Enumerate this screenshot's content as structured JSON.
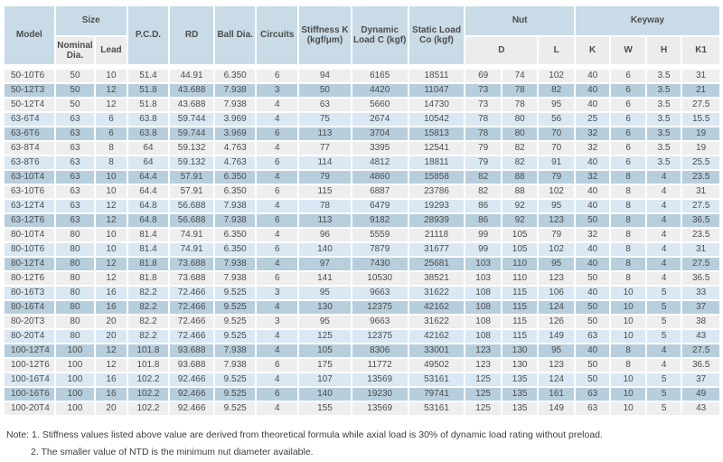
{
  "colors": {
    "header_blue": "#c8dbe6",
    "subheader_gray": "#ececec",
    "row_light": "#eeeeee",
    "row_light_blue": "#d9e8f3",
    "row_medium_blue": "#b7cedc",
    "text": "#4d4d4d"
  },
  "table": {
    "headers": {
      "model": "Model",
      "size": "Size",
      "nominal_dia": "Nominal Dia.",
      "lead": "Lead",
      "pcd": "P.C.D.",
      "rd": "RD",
      "ball_dia": "Ball Dia.",
      "circuits": "Circuits",
      "stiffness": "Stiffness K (kgf/μm)",
      "dynamic_load": "Dynamic Load C (kgf)",
      "static_load": "Static Load Co (kgf)",
      "nut": "Nut",
      "keyway": "Keyway",
      "d": "D",
      "l": "L",
      "k": "K",
      "w": "W",
      "h": "H",
      "k1": "K1"
    },
    "column_keys": [
      "model",
      "nominal-dia",
      "lead",
      "pcd",
      "rd",
      "ball-dia",
      "circuits",
      "stiffness",
      "dynamic-load",
      "static-load",
      "nut-d-min",
      "nut-d-max",
      "nut-l",
      "keyway-k",
      "keyway-w",
      "keyway-h",
      "keyway-k1"
    ],
    "rows": [
      {
        "tone": "light",
        "values": [
          "50-10T6",
          "50",
          "10",
          "51.4",
          "44.91",
          "6.350",
          "6",
          "94",
          "6165",
          "18511",
          "69",
          "74",
          "102",
          "40",
          "6",
          "3.5",
          "31"
        ]
      },
      {
        "tone": "medium",
        "values": [
          "50-12T3",
          "50",
          "12",
          "51.8",
          "43.688",
          "7.938",
          "3",
          "50",
          "4420",
          "11047",
          "73",
          "78",
          "82",
          "40",
          "6",
          "3.5",
          "21"
        ]
      },
      {
        "tone": "light",
        "values": [
          "50-12T4",
          "50",
          "12",
          "51.8",
          "43.688",
          "7.938",
          "4",
          "63",
          "5660",
          "14730",
          "73",
          "78",
          "95",
          "40",
          "6",
          "3.5",
          "27.5"
        ]
      },
      {
        "tone": "blue",
        "values": [
          "63-6T4",
          "63",
          "6",
          "63.8",
          "59.744",
          "3.969",
          "4",
          "75",
          "2674",
          "10542",
          "78",
          "80",
          "56",
          "25",
          "6",
          "3.5",
          "15.5"
        ]
      },
      {
        "tone": "medium",
        "values": [
          "63-6T6",
          "63",
          "6",
          "63.8",
          "59.744",
          "3.969",
          "6",
          "113",
          "3704",
          "15813",
          "78",
          "80",
          "70",
          "32",
          "6",
          "3.5",
          "19"
        ]
      },
      {
        "tone": "light",
        "values": [
          "63-8T4",
          "63",
          "8",
          "64",
          "59.132",
          "4.763",
          "4",
          "77",
          "3395",
          "12541",
          "79",
          "82",
          "70",
          "32",
          "6",
          "3.5",
          "19"
        ]
      },
      {
        "tone": "blue",
        "values": [
          "63-8T6",
          "63",
          "8",
          "64",
          "59.132",
          "4.763",
          "6",
          "114",
          "4812",
          "18811",
          "79",
          "82",
          "91",
          "40",
          "6",
          "3.5",
          "25.5"
        ]
      },
      {
        "tone": "medium",
        "values": [
          "63-10T4",
          "63",
          "10",
          "64.4",
          "57.91",
          "6.350",
          "4",
          "79",
          "4860",
          "15858",
          "82",
          "88",
          "79",
          "32",
          "8",
          "4",
          "23.5"
        ]
      },
      {
        "tone": "light",
        "values": [
          "63-10T6",
          "63",
          "10",
          "64.4",
          "57.91",
          "6.350",
          "6",
          "115",
          "6887",
          "23786",
          "82",
          "88",
          "102",
          "40",
          "8",
          "4",
          "31"
        ]
      },
      {
        "tone": "blue",
        "values": [
          "63-12T4",
          "63",
          "12",
          "64.8",
          "56.688",
          "7.938",
          "4",
          "78",
          "6479",
          "19293",
          "86",
          "92",
          "95",
          "40",
          "8",
          "4",
          "27.5"
        ]
      },
      {
        "tone": "medium",
        "values": [
          "63-12T6",
          "63",
          "12",
          "64.8",
          "56.688",
          "7.938",
          "6",
          "113",
          "9182",
          "28939",
          "86",
          "92",
          "123",
          "50",
          "8",
          "4",
          "36.5"
        ]
      },
      {
        "tone": "light",
        "values": [
          "80-10T4",
          "80",
          "10",
          "81.4",
          "74.91",
          "6.350",
          "4",
          "96",
          "5559",
          "21118",
          "99",
          "105",
          "79",
          "32",
          "8",
          "4",
          "23.5"
        ]
      },
      {
        "tone": "blue",
        "values": [
          "80-10T6",
          "80",
          "10",
          "81.4",
          "74.91",
          "6.350",
          "6",
          "140",
          "7879",
          "31677",
          "99",
          "105",
          "102",
          "40",
          "8",
          "4",
          "31"
        ]
      },
      {
        "tone": "medium",
        "values": [
          "80-12T4",
          "80",
          "12",
          "81.8",
          "73.688",
          "7.938",
          "4",
          "97",
          "7430",
          "25681",
          "103",
          "110",
          "95",
          "40",
          "8",
          "4",
          "27.5"
        ]
      },
      {
        "tone": "light",
        "values": [
          "80-12T6",
          "80",
          "12",
          "81.8",
          "73.688",
          "7.938",
          "6",
          "141",
          "10530",
          "38521",
          "103",
          "110",
          "123",
          "50",
          "8",
          "4",
          "36.5"
        ]
      },
      {
        "tone": "blue",
        "values": [
          "80-16T3",
          "80",
          "16",
          "82.2",
          "72.466",
          "9.525",
          "3",
          "95",
          "9663",
          "31622",
          "108",
          "115",
          "106",
          "40",
          "10",
          "5",
          "33"
        ]
      },
      {
        "tone": "medium",
        "values": [
          "80-16T4",
          "80",
          "16",
          "82.2",
          "72.466",
          "9.525",
          "4",
          "130",
          "12375",
          "42162",
          "108",
          "115",
          "124",
          "50",
          "10",
          "5",
          "37"
        ]
      },
      {
        "tone": "light",
        "values": [
          "80-20T3",
          "80",
          "20",
          "82.2",
          "72.466",
          "9.525",
          "3",
          "95",
          "9663",
          "31622",
          "108",
          "115",
          "126",
          "50",
          "10",
          "5",
          "38"
        ]
      },
      {
        "tone": "blue",
        "values": [
          "80-20T4",
          "80",
          "20",
          "82.2",
          "72.466",
          "9.525",
          "4",
          "125",
          "12375",
          "42162",
          "108",
          "115",
          "149",
          "63",
          "10",
          "5",
          "43"
        ]
      },
      {
        "tone": "medium",
        "values": [
          "100-12T4",
          "100",
          "12",
          "101.8",
          "93.688",
          "7.938",
          "4",
          "105",
          "8306",
          "33001",
          "123",
          "130",
          "95",
          "40",
          "8",
          "4",
          "27.5"
        ]
      },
      {
        "tone": "light",
        "values": [
          "100-12T6",
          "100",
          "12",
          "101.8",
          "93.688",
          "7.938",
          "6",
          "175",
          "11772",
          "49502",
          "123",
          "130",
          "123",
          "50",
          "8",
          "4",
          "36.5"
        ]
      },
      {
        "tone": "blue",
        "values": [
          "100-16T4",
          "100",
          "16",
          "102.2",
          "92.466",
          "9.525",
          "4",
          "107",
          "13569",
          "53161",
          "125",
          "135",
          "124",
          "50",
          "10",
          "5",
          "37"
        ]
      },
      {
        "tone": "medium",
        "values": [
          "100-16T6",
          "100",
          "16",
          "102.2",
          "92.466",
          "9.525",
          "6",
          "140",
          "19230",
          "79741",
          "125",
          "135",
          "161",
          "63",
          "10",
          "5",
          "49"
        ]
      },
      {
        "tone": "light",
        "values": [
          "100-20T4",
          "100",
          "20",
          "102.2",
          "92.466",
          "9.525",
          "4",
          "155",
          "13569",
          "53161",
          "125",
          "135",
          "149",
          "63",
          "10",
          "5",
          "43"
        ]
      }
    ]
  },
  "notes": {
    "prefix": "Note:",
    "items": [
      "1. Stiffness values listed above value are derived from theoretical formula while axial load is 30% of dynamic load rating without preload.",
      "2. The smaller value of NTD is the minimum nut diameter available."
    ]
  }
}
